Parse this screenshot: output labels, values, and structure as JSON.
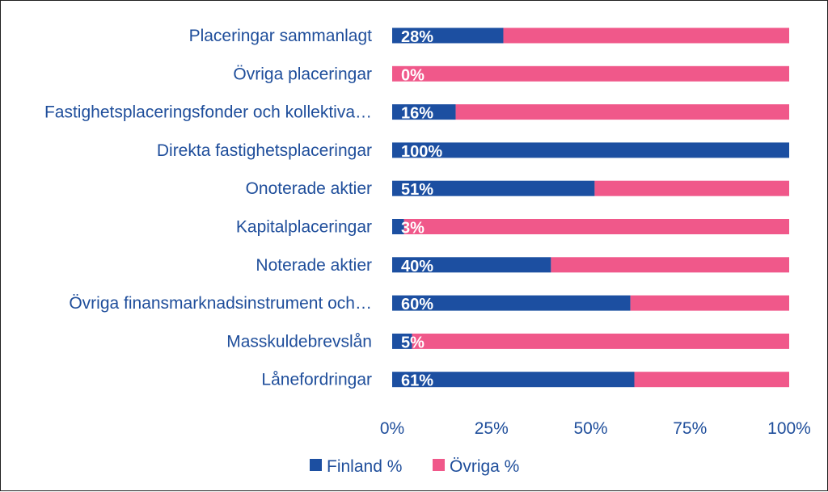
{
  "chart_data": {
    "type": "bar",
    "orientation": "horizontal",
    "stacked": true,
    "categories": [
      "Placeringar sammanlagt",
      "Övriga placeringar",
      "Fastighetsplaceringsfonder och kollektiva…",
      "Direkta fastighetsplaceringar",
      "Onoterade aktier",
      "Kapitalplaceringar",
      "Noterade aktier",
      "Övriga finansmarknadsinstrument och…",
      "Masskuldebrevslån",
      "Lånefordringar"
    ],
    "series": [
      {
        "name": "Finland %",
        "color": "#1c4fa1",
        "values": [
          28,
          0,
          16,
          100,
          51,
          3,
          40,
          60,
          5,
          61
        ]
      },
      {
        "name": "Övriga %",
        "color": "#f0588a",
        "values": [
          72,
          100,
          84,
          0,
          49,
          97,
          60,
          40,
          95,
          39
        ]
      }
    ],
    "data_labels": [
      "28%",
      "0%",
      "16%",
      "100%",
      "51%",
      "3%",
      "40%",
      "60%",
      "5%",
      "61%"
    ],
    "xticks": [
      "0%",
      "25%",
      "50%",
      "75%",
      "100%"
    ],
    "xlim": [
      0,
      100
    ],
    "grid": false,
    "legend_position": "bottom",
    "title": "",
    "xlabel": "",
    "ylabel": ""
  }
}
